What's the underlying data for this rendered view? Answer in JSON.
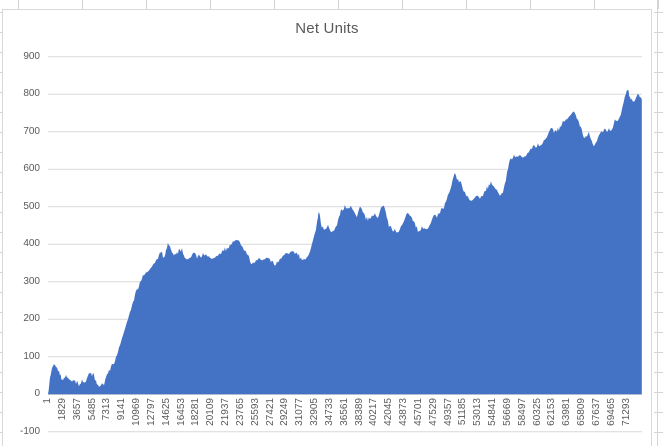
{
  "chart_data": {
    "type": "area",
    "title": "Net Units",
    "legend": "none",
    "grid": "horizontal",
    "series_color": "#4472C4",
    "gridline_color": "#d9d9d9",
    "axis_line_color": "#bfbfbf",
    "label_color": "#595959",
    "x_axis": {
      "min": 1,
      "max": 73200,
      "tick_interval": 1828,
      "tick_labels": [
        "1",
        "1829",
        "3657",
        "5485",
        "7313",
        "9141",
        "10969",
        "12797",
        "14625",
        "16453",
        "18281",
        "20109",
        "21937",
        "23765",
        "25593",
        "27421",
        "29249",
        "31077",
        "32905",
        "34733",
        "36561",
        "38389",
        "40217",
        "42045",
        "43873",
        "45701",
        "47529",
        "49357",
        "51185",
        "53013",
        "54841",
        "56669",
        "58497",
        "60325",
        "62153",
        "63981",
        "65809",
        "67637",
        "69465",
        "71293"
      ]
    },
    "y_axis": {
      "min": -100,
      "max": 900,
      "tick_interval": 100,
      "tick_labels": [
        "900",
        "800",
        "700",
        "600",
        "500",
        "400",
        "300",
        "200",
        "100",
        "0",
        "-100"
      ],
      "tick_values": [
        900,
        800,
        700,
        600,
        500,
        400,
        300,
        200,
        100,
        0,
        -100
      ]
    },
    "series": [
      {
        "name": "Net Units",
        "points": [
          [
            1,
            0
          ],
          [
            250,
            45
          ],
          [
            490,
            70
          ],
          [
            740,
            80
          ],
          [
            990,
            72
          ],
          [
            1230,
            62
          ],
          [
            1480,
            50
          ],
          [
            1730,
            42
          ],
          [
            1970,
            45
          ],
          [
            2220,
            52
          ],
          [
            2460,
            44
          ],
          [
            2710,
            38
          ],
          [
            2960,
            33
          ],
          [
            3200,
            36
          ],
          [
            3450,
            27
          ],
          [
            3700,
            30
          ],
          [
            3940,
            28
          ],
          [
            4190,
            40
          ],
          [
            4440,
            32
          ],
          [
            4680,
            34
          ],
          [
            4930,
            50
          ],
          [
            5170,
            56
          ],
          [
            5420,
            48
          ],
          [
            5670,
            52
          ],
          [
            5910,
            38
          ],
          [
            6160,
            26
          ],
          [
            6410,
            22
          ],
          [
            6650,
            30
          ],
          [
            6900,
            24
          ],
          [
            7150,
            45
          ],
          [
            7390,
            55
          ],
          [
            7640,
            62
          ],
          [
            8010,
            80
          ],
          [
            8380,
            100
          ],
          [
            8750,
            125
          ],
          [
            9120,
            150
          ],
          [
            9490,
            175
          ],
          [
            9860,
            200
          ],
          [
            10230,
            225
          ],
          [
            10600,
            250
          ],
          [
            10970,
            280
          ],
          [
            11330,
            300
          ],
          [
            11700,
            318
          ],
          [
            12070,
            325
          ],
          [
            12440,
            330
          ],
          [
            12810,
            340
          ],
          [
            13180,
            350
          ],
          [
            13550,
            360
          ],
          [
            13920,
            378
          ],
          [
            14290,
            366
          ],
          [
            14540,
            385
          ],
          [
            14780,
            404
          ],
          [
            15030,
            395
          ],
          [
            15280,
            378
          ],
          [
            15520,
            370
          ],
          [
            15770,
            372
          ],
          [
            16020,
            374
          ],
          [
            16260,
            385
          ],
          [
            16510,
            391
          ],
          [
            16760,
            370
          ],
          [
            17000,
            362
          ],
          [
            17250,
            360
          ],
          [
            17620,
            365
          ],
          [
            17990,
            378
          ],
          [
            18360,
            362
          ],
          [
            18730,
            368
          ],
          [
            19100,
            377
          ],
          [
            19470,
            374
          ],
          [
            19840,
            368
          ],
          [
            20210,
            361
          ],
          [
            20570,
            364
          ],
          [
            20940,
            369
          ],
          [
            21310,
            373
          ],
          [
            21680,
            382
          ],
          [
            22050,
            391
          ],
          [
            22420,
            399
          ],
          [
            22790,
            408
          ],
          [
            23160,
            412
          ],
          [
            23530,
            410
          ],
          [
            23780,
            397
          ],
          [
            24150,
            383
          ],
          [
            24520,
            372
          ],
          [
            24890,
            355
          ],
          [
            25260,
            352
          ],
          [
            25630,
            358
          ],
          [
            26000,
            364
          ],
          [
            26370,
            357
          ],
          [
            26730,
            360
          ],
          [
            27100,
            363
          ],
          [
            27470,
            352
          ],
          [
            27840,
            347
          ],
          [
            28210,
            354
          ],
          [
            28580,
            362
          ],
          [
            28950,
            370
          ],
          [
            29320,
            377
          ],
          [
            29690,
            374
          ],
          [
            30060,
            381
          ],
          [
            30430,
            374
          ],
          [
            30800,
            370
          ],
          [
            31170,
            365
          ],
          [
            31540,
            362
          ],
          [
            31910,
            366
          ],
          [
            32280,
            380
          ],
          [
            32650,
            410
          ],
          [
            33020,
            438
          ],
          [
            33260,
            470
          ],
          [
            33390,
            485
          ],
          [
            33630,
            455
          ],
          [
            33880,
            448
          ],
          [
            34130,
            440
          ],
          [
            34500,
            452
          ],
          [
            34870,
            432
          ],
          [
            35240,
            436
          ],
          [
            35610,
            450
          ],
          [
            35970,
            478
          ],
          [
            36220,
            492
          ],
          [
            36590,
            505
          ],
          [
            36960,
            497
          ],
          [
            37330,
            503
          ],
          [
            37700,
            488
          ],
          [
            38070,
            472
          ],
          [
            38440,
            500
          ],
          [
            38810,
            485
          ],
          [
            39180,
            465
          ],
          [
            39550,
            472
          ],
          [
            39920,
            477
          ],
          [
            40290,
            483
          ],
          [
            40660,
            470
          ],
          [
            41030,
            497
          ],
          [
            41400,
            503
          ],
          [
            41770,
            470
          ],
          [
            42010,
            445
          ],
          [
            42380,
            440
          ],
          [
            42750,
            442
          ],
          [
            43120,
            432
          ],
          [
            43490,
            448
          ],
          [
            43860,
            461
          ],
          [
            44230,
            483
          ],
          [
            44600,
            476
          ],
          [
            44970,
            462
          ],
          [
            45340,
            444
          ],
          [
            45710,
            436
          ],
          [
            46080,
            448
          ],
          [
            46450,
            443
          ],
          [
            46820,
            442
          ],
          [
            47190,
            457
          ],
          [
            47560,
            478
          ],
          [
            47930,
            471
          ],
          [
            48290,
            482
          ],
          [
            48660,
            495
          ],
          [
            48910,
            510
          ],
          [
            49280,
            532
          ],
          [
            49650,
            551
          ],
          [
            49900,
            575
          ],
          [
            50140,
            590
          ],
          [
            50390,
            572
          ],
          [
            50640,
            565
          ],
          [
            51010,
            558
          ],
          [
            51370,
            540
          ],
          [
            51740,
            528
          ],
          [
            52110,
            516
          ],
          [
            52480,
            522
          ],
          [
            52850,
            530
          ],
          [
            53220,
            521
          ],
          [
            53590,
            528
          ],
          [
            53960,
            542
          ],
          [
            54330,
            560
          ],
          [
            54580,
            568
          ],
          [
            54950,
            555
          ],
          [
            55320,
            545
          ],
          [
            55690,
            529
          ],
          [
            56060,
            537
          ],
          [
            56430,
            570
          ],
          [
            56670,
            599
          ],
          [
            57040,
            629
          ],
          [
            57410,
            639
          ],
          [
            57780,
            635
          ],
          [
            58150,
            639
          ],
          [
            58520,
            631
          ],
          [
            58890,
            635
          ],
          [
            59260,
            645
          ],
          [
            59630,
            654
          ],
          [
            60000,
            661
          ],
          [
            60370,
            669
          ],
          [
            60740,
            665
          ],
          [
            61110,
            678
          ],
          [
            61480,
            686
          ],
          [
            61850,
            705
          ],
          [
            62090,
            710
          ],
          [
            62340,
            697
          ],
          [
            62710,
            700
          ],
          [
            63080,
            714
          ],
          [
            63450,
            730
          ],
          [
            63820,
            733
          ],
          [
            64190,
            740
          ],
          [
            64560,
            749
          ],
          [
            64800,
            754
          ],
          [
            65170,
            735
          ],
          [
            65540,
            715
          ],
          [
            65910,
            692
          ],
          [
            66280,
            688
          ],
          [
            66650,
            700
          ],
          [
            67020,
            675
          ],
          [
            67270,
            661
          ],
          [
            67640,
            675
          ],
          [
            68010,
            695
          ],
          [
            68380,
            698
          ],
          [
            68750,
            705
          ],
          [
            69120,
            710
          ],
          [
            69490,
            706
          ],
          [
            69850,
            733
          ],
          [
            70220,
            729
          ],
          [
            70590,
            745
          ],
          [
            70960,
            780
          ],
          [
            71210,
            800
          ],
          [
            71460,
            810
          ],
          [
            71700,
            795
          ],
          [
            71950,
            789
          ],
          [
            72200,
            781
          ],
          [
            72440,
            790
          ],
          [
            72690,
            802
          ],
          [
            72930,
            792
          ],
          [
            73180,
            785
          ]
        ]
      }
    ]
  }
}
